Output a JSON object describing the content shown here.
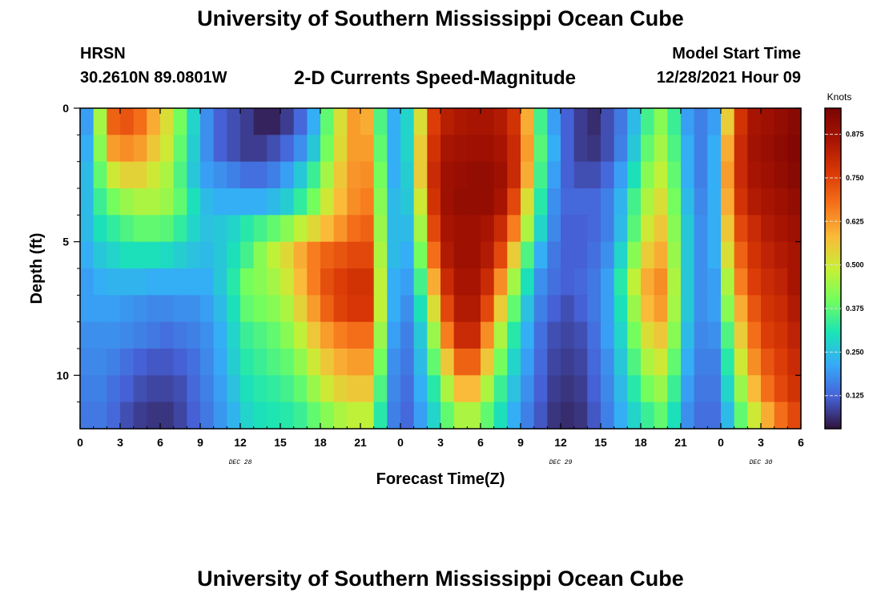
{
  "header": {
    "title": "University of Southern Mississippi Ocean Cube",
    "station": "HRSN",
    "coords": "30.2610N  89.0801W",
    "subtitle": "2-D Currents Speed-Magnitude",
    "model_start_label": "Model Start Time",
    "model_start_value": "12/28/2021 Hour 09"
  },
  "footer": {
    "title": "University of Southern Mississippi Ocean Cube"
  },
  "chart_data": {
    "type": "heatmap",
    "xlabel": "Forecast Time(Z)",
    "ylabel": "Depth (ft)",
    "colorbar_label": "Knots",
    "x_tick_labels": [
      "0",
      "3",
      "6",
      "9",
      "12",
      "15",
      "18",
      "21",
      "0",
      "3",
      "6",
      "9",
      "12",
      "15",
      "18",
      "21",
      "0",
      "3",
      "6"
    ],
    "day_labels": [
      {
        "label": "DEC 28",
        "hour": 12
      },
      {
        "label": "DEC 29",
        "hour": 36
      },
      {
        "label": "DEC 30",
        "hour": 51
      }
    ],
    "x_range_hours": [
      0,
      54
    ],
    "y_tick_labels": [
      "0",
      "5",
      "10"
    ],
    "y_tick_values": [
      0,
      5,
      10
    ],
    "ylim": [
      12,
      0
    ],
    "depths_ft": [
      0.5,
      1.5,
      2.5,
      3.5,
      4.5,
      5.5,
      6.5,
      7.5,
      8.5,
      9.5,
      10.5,
      11.5
    ],
    "colorbar_ticks": [
      "0.125",
      "0.250",
      "0.375",
      "0.500",
      "0.625",
      "0.750",
      "0.875"
    ],
    "colorbar_tick_values": [
      0.125,
      0.25,
      0.375,
      0.5,
      0.625,
      0.75,
      0.875
    ],
    "clim": [
      0.03,
      0.95
    ],
    "time_hours": [
      0,
      1,
      2,
      3,
      4,
      5,
      6,
      7,
      8,
      9,
      10,
      11,
      12,
      13,
      14,
      15,
      16,
      17,
      18,
      19,
      20,
      21,
      22,
      23,
      24,
      25,
      26,
      27,
      28,
      29,
      30,
      31,
      32,
      33,
      34,
      35,
      36,
      37,
      38,
      39,
      40,
      41,
      42,
      43,
      44,
      45,
      46,
      47,
      48,
      49,
      50,
      51,
      52,
      53
    ],
    "speed_knots": [
      [
        0.2,
        0.45,
        0.7,
        0.72,
        0.68,
        0.6,
        0.52,
        0.4,
        0.28,
        0.18,
        0.12,
        0.1,
        0.08,
        0.05,
        0.05,
        0.08,
        0.13,
        0.22,
        0.38,
        0.52,
        0.62,
        0.6,
        0.36,
        0.22,
        0.28,
        0.52,
        0.76,
        0.83,
        0.85,
        0.86,
        0.86,
        0.84,
        0.78,
        0.6,
        0.35,
        0.2,
        0.12,
        0.08,
        0.06,
        0.1,
        0.15,
        0.24,
        0.35,
        0.42,
        0.34,
        0.2,
        0.16,
        0.2,
        0.55,
        0.78,
        0.86,
        0.88,
        0.9,
        0.92
      ],
      [
        0.22,
        0.42,
        0.62,
        0.64,
        0.62,
        0.56,
        0.5,
        0.38,
        0.27,
        0.18,
        0.12,
        0.1,
        0.08,
        0.08,
        0.1,
        0.13,
        0.18,
        0.26,
        0.4,
        0.53,
        0.62,
        0.62,
        0.38,
        0.22,
        0.28,
        0.55,
        0.78,
        0.86,
        0.87,
        0.88,
        0.88,
        0.86,
        0.8,
        0.62,
        0.37,
        0.22,
        0.12,
        0.08,
        0.07,
        0.1,
        0.16,
        0.26,
        0.38,
        0.45,
        0.36,
        0.22,
        0.16,
        0.22,
        0.6,
        0.8,
        0.87,
        0.89,
        0.91,
        0.93
      ],
      [
        0.24,
        0.38,
        0.5,
        0.54,
        0.54,
        0.5,
        0.46,
        0.36,
        0.26,
        0.2,
        0.18,
        0.16,
        0.14,
        0.14,
        0.16,
        0.2,
        0.26,
        0.34,
        0.45,
        0.56,
        0.63,
        0.64,
        0.4,
        0.22,
        0.27,
        0.55,
        0.8,
        0.88,
        0.89,
        0.9,
        0.9,
        0.88,
        0.8,
        0.6,
        0.35,
        0.2,
        0.12,
        0.1,
        0.1,
        0.13,
        0.2,
        0.3,
        0.42,
        0.48,
        0.38,
        0.22,
        0.16,
        0.22,
        0.62,
        0.8,
        0.86,
        0.88,
        0.9,
        0.92
      ],
      [
        0.24,
        0.34,
        0.4,
        0.44,
        0.46,
        0.46,
        0.44,
        0.38,
        0.3,
        0.24,
        0.22,
        0.22,
        0.22,
        0.22,
        0.24,
        0.27,
        0.33,
        0.4,
        0.5,
        0.58,
        0.64,
        0.66,
        0.42,
        0.24,
        0.26,
        0.5,
        0.78,
        0.88,
        0.9,
        0.9,
        0.9,
        0.86,
        0.74,
        0.52,
        0.32,
        0.18,
        0.13,
        0.13,
        0.13,
        0.16,
        0.23,
        0.35,
        0.46,
        0.52,
        0.4,
        0.24,
        0.17,
        0.22,
        0.6,
        0.78,
        0.84,
        0.86,
        0.88,
        0.9
      ],
      [
        0.24,
        0.3,
        0.33,
        0.36,
        0.38,
        0.38,
        0.37,
        0.33,
        0.28,
        0.25,
        0.26,
        0.28,
        0.32,
        0.35,
        0.38,
        0.42,
        0.48,
        0.53,
        0.58,
        0.63,
        0.68,
        0.7,
        0.44,
        0.24,
        0.24,
        0.45,
        0.74,
        0.86,
        0.88,
        0.88,
        0.86,
        0.8,
        0.66,
        0.46,
        0.28,
        0.17,
        0.12,
        0.12,
        0.13,
        0.16,
        0.24,
        0.37,
        0.5,
        0.56,
        0.42,
        0.26,
        0.18,
        0.22,
        0.56,
        0.74,
        0.8,
        0.84,
        0.86,
        0.88
      ],
      [
        0.22,
        0.26,
        0.28,
        0.3,
        0.3,
        0.3,
        0.29,
        0.27,
        0.25,
        0.24,
        0.26,
        0.3,
        0.35,
        0.42,
        0.48,
        0.53,
        0.6,
        0.66,
        0.7,
        0.72,
        0.74,
        0.74,
        0.46,
        0.24,
        0.22,
        0.4,
        0.68,
        0.84,
        0.88,
        0.88,
        0.84,
        0.74,
        0.55,
        0.36,
        0.22,
        0.15,
        0.12,
        0.12,
        0.14,
        0.18,
        0.28,
        0.42,
        0.55,
        0.6,
        0.44,
        0.26,
        0.18,
        0.22,
        0.52,
        0.7,
        0.78,
        0.82,
        0.84,
        0.86
      ],
      [
        0.2,
        0.22,
        0.23,
        0.23,
        0.23,
        0.22,
        0.22,
        0.22,
        0.22,
        0.22,
        0.26,
        0.32,
        0.4,
        0.42,
        0.45,
        0.5,
        0.58,
        0.66,
        0.73,
        0.76,
        0.78,
        0.78,
        0.48,
        0.22,
        0.2,
        0.35,
        0.6,
        0.8,
        0.86,
        0.86,
        0.8,
        0.64,
        0.45,
        0.3,
        0.18,
        0.14,
        0.12,
        0.13,
        0.15,
        0.2,
        0.32,
        0.48,
        0.6,
        0.64,
        0.46,
        0.26,
        0.18,
        0.2,
        0.46,
        0.66,
        0.76,
        0.8,
        0.82,
        0.86
      ],
      [
        0.2,
        0.2,
        0.2,
        0.19,
        0.18,
        0.17,
        0.17,
        0.18,
        0.18,
        0.2,
        0.24,
        0.3,
        0.38,
        0.4,
        0.42,
        0.46,
        0.54,
        0.62,
        0.7,
        0.75,
        0.77,
        0.77,
        0.48,
        0.22,
        0.18,
        0.3,
        0.52,
        0.74,
        0.84,
        0.84,
        0.74,
        0.55,
        0.38,
        0.25,
        0.16,
        0.12,
        0.1,
        0.12,
        0.15,
        0.2,
        0.3,
        0.44,
        0.58,
        0.62,
        0.45,
        0.26,
        0.18,
        0.2,
        0.42,
        0.6,
        0.72,
        0.78,
        0.8,
        0.84
      ],
      [
        0.18,
        0.18,
        0.18,
        0.17,
        0.16,
        0.15,
        0.14,
        0.15,
        0.16,
        0.18,
        0.22,
        0.28,
        0.34,
        0.36,
        0.38,
        0.42,
        0.48,
        0.56,
        0.62,
        0.66,
        0.68,
        0.68,
        0.44,
        0.2,
        0.16,
        0.26,
        0.44,
        0.66,
        0.8,
        0.8,
        0.64,
        0.46,
        0.32,
        0.22,
        0.14,
        0.1,
        0.09,
        0.1,
        0.14,
        0.2,
        0.28,
        0.4,
        0.52,
        0.56,
        0.42,
        0.24,
        0.17,
        0.18,
        0.36,
        0.55,
        0.68,
        0.76,
        0.78,
        0.82
      ],
      [
        0.17,
        0.17,
        0.16,
        0.14,
        0.12,
        0.11,
        0.11,
        0.12,
        0.14,
        0.17,
        0.21,
        0.27,
        0.32,
        0.34,
        0.36,
        0.38,
        0.43,
        0.5,
        0.56,
        0.6,
        0.62,
        0.62,
        0.4,
        0.18,
        0.15,
        0.24,
        0.38,
        0.56,
        0.7,
        0.7,
        0.56,
        0.4,
        0.28,
        0.2,
        0.13,
        0.09,
        0.08,
        0.09,
        0.13,
        0.18,
        0.26,
        0.36,
        0.46,
        0.5,
        0.38,
        0.22,
        0.16,
        0.16,
        0.32,
        0.5,
        0.64,
        0.72,
        0.76,
        0.8
      ],
      [
        0.16,
        0.16,
        0.14,
        0.12,
        0.1,
        0.09,
        0.09,
        0.1,
        0.13,
        0.16,
        0.2,
        0.25,
        0.3,
        0.32,
        0.33,
        0.35,
        0.38,
        0.44,
        0.5,
        0.54,
        0.56,
        0.56,
        0.36,
        0.17,
        0.14,
        0.22,
        0.32,
        0.46,
        0.58,
        0.58,
        0.46,
        0.34,
        0.25,
        0.18,
        0.12,
        0.08,
        0.07,
        0.08,
        0.12,
        0.17,
        0.24,
        0.32,
        0.4,
        0.44,
        0.34,
        0.2,
        0.15,
        0.15,
        0.28,
        0.44,
        0.58,
        0.68,
        0.74,
        0.78
      ],
      [
        0.15,
        0.15,
        0.13,
        0.1,
        0.08,
        0.07,
        0.07,
        0.09,
        0.12,
        0.15,
        0.19,
        0.23,
        0.28,
        0.3,
        0.31,
        0.32,
        0.34,
        0.38,
        0.42,
        0.46,
        0.48,
        0.48,
        0.32,
        0.16,
        0.13,
        0.2,
        0.28,
        0.38,
        0.46,
        0.46,
        0.38,
        0.3,
        0.22,
        0.16,
        0.11,
        0.07,
        0.06,
        0.07,
        0.11,
        0.16,
        0.22,
        0.28,
        0.34,
        0.38,
        0.3,
        0.18,
        0.14,
        0.14,
        0.24,
        0.38,
        0.5,
        0.6,
        0.68,
        0.74
      ]
    ]
  }
}
